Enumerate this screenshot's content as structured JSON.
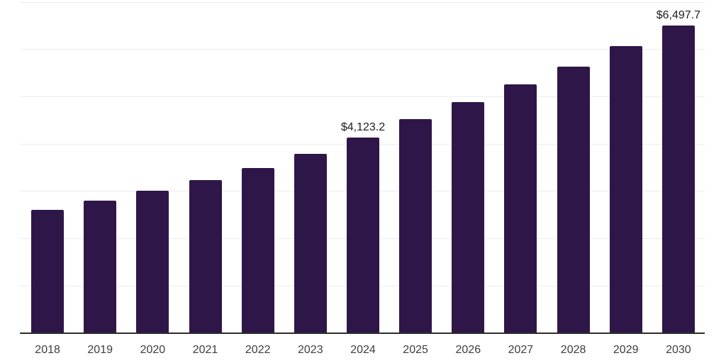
{
  "chart": {
    "background_color": "#ffffff",
    "bar_color": "#2f1648",
    "gridline_color": "#ececec",
    "axis_color": "#2d2d2d",
    "tick_label_color": "#3d3d3d",
    "data_label_color": "#1c1c1c"
  },
  "chart_data": {
    "type": "bar",
    "title": "",
    "xlabel": "",
    "ylabel": "",
    "categories": [
      "2018",
      "2019",
      "2020",
      "2021",
      "2022",
      "2023",
      "2024",
      "2025",
      "2026",
      "2027",
      "2028",
      "2029",
      "2030"
    ],
    "values": [
      2600,
      2790,
      3005,
      3230,
      3480,
      3780,
      4123.2,
      4520,
      4885,
      5250,
      5625,
      6070,
      6497.7
    ],
    "data_labels": [
      "",
      "",
      "",
      "",
      "",
      "",
      "$4,123.2",
      "",
      "",
      "",
      "",
      "",
      "$6,497.7"
    ],
    "ylim": [
      0,
      7000
    ],
    "gridline_step": 1000,
    "grid": true,
    "legend": false,
    "y_axis_labels_visible": false
  }
}
